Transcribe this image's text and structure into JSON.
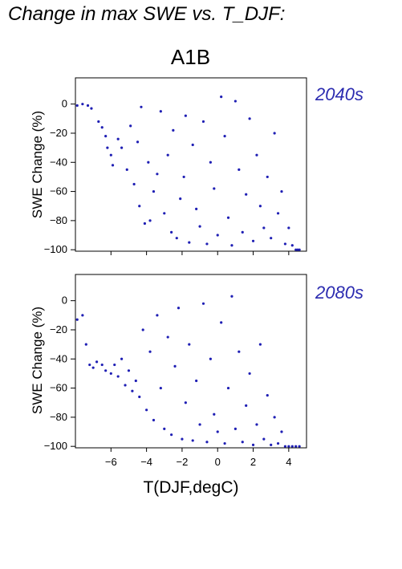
{
  "page": {
    "title": "Change in max SWE vs. T_DJF:",
    "scenario": "A1B"
  },
  "colors": {
    "points": "#1f1fb4",
    "period_label": "#2b2bb0"
  },
  "chart_data": [
    {
      "type": "scatter",
      "period_label": "2040s",
      "xlabel": "",
      "ylabel": "SWE Change (%)",
      "xlim": [
        -8,
        5
      ],
      "ylim": [
        -101,
        18
      ],
      "xticks": [
        -6,
        -4,
        -2,
        0,
        2,
        4
      ],
      "yticks": [
        0,
        -20,
        -40,
        -60,
        -80,
        -100
      ],
      "show_x_tick_labels": false,
      "grid": false,
      "series": [
        {
          "points": [
            [
              -7.9,
              -1
            ],
            [
              -7.6,
              0
            ],
            [
              -7.3,
              -1
            ],
            [
              -7.1,
              -3
            ],
            [
              -6.7,
              -12
            ],
            [
              -6.5,
              -16
            ],
            [
              -6.3,
              -22
            ],
            [
              -6.2,
              -30
            ],
            [
              -6.0,
              -35
            ],
            [
              -5.9,
              -42
            ],
            [
              -5.6,
              -24
            ],
            [
              -5.4,
              -30
            ],
            [
              -5.1,
              -45
            ],
            [
              -4.9,
              -15
            ],
            [
              -4.7,
              -55
            ],
            [
              -4.5,
              -26
            ],
            [
              -4.4,
              -70
            ],
            [
              -4.3,
              -2
            ],
            [
              -4.1,
              -82
            ],
            [
              -3.9,
              -40
            ],
            [
              -3.8,
              -80
            ],
            [
              -3.6,
              -60
            ],
            [
              -3.4,
              -48
            ],
            [
              -3.2,
              -5
            ],
            [
              -3.0,
              -75
            ],
            [
              -2.8,
              -35
            ],
            [
              -2.6,
              -88
            ],
            [
              -2.5,
              -18
            ],
            [
              -2.3,
              -92
            ],
            [
              -2.1,
              -65
            ],
            [
              -1.9,
              -50
            ],
            [
              -1.8,
              -8
            ],
            [
              -1.6,
              -95
            ],
            [
              -1.4,
              -28
            ],
            [
              -1.2,
              -72
            ],
            [
              -1.0,
              -84
            ],
            [
              -0.8,
              -12
            ],
            [
              -0.6,
              -96
            ],
            [
              -0.4,
              -40
            ],
            [
              -0.2,
              -58
            ],
            [
              0.0,
              -90
            ],
            [
              0.2,
              5
            ],
            [
              0.4,
              -22
            ],
            [
              0.6,
              -78
            ],
            [
              0.8,
              -97
            ],
            [
              1.0,
              2
            ],
            [
              1.2,
              -45
            ],
            [
              1.4,
              -88
            ],
            [
              1.6,
              -62
            ],
            [
              1.8,
              -10
            ],
            [
              2.0,
              -94
            ],
            [
              2.2,
              -35
            ],
            [
              2.4,
              -70
            ],
            [
              2.6,
              -85
            ],
            [
              2.8,
              -50
            ],
            [
              3.0,
              -92
            ],
            [
              3.2,
              -20
            ],
            [
              3.4,
              -75
            ],
            [
              3.6,
              -60
            ],
            [
              3.8,
              -96
            ],
            [
              4.0,
              -85
            ],
            [
              4.2,
              -97
            ],
            [
              4.4,
              -100
            ],
            [
              4.5,
              -100
            ],
            [
              4.6,
              -100
            ]
          ]
        }
      ]
    },
    {
      "type": "scatter",
      "period_label": "2080s",
      "xlabel": "T(DJF,degC)",
      "ylabel": "SWE Change (%)",
      "xlim": [
        -8,
        5
      ],
      "ylim": [
        -101,
        18
      ],
      "xticks": [
        -6,
        -4,
        -2,
        0,
        2,
        4
      ],
      "yticks": [
        0,
        -20,
        -40,
        -60,
        -80,
        -100
      ],
      "show_x_tick_labels": true,
      "grid": false,
      "series": [
        {
          "points": [
            [
              -7.9,
              -13
            ],
            [
              -7.6,
              -10
            ],
            [
              -7.4,
              -30
            ],
            [
              -7.2,
              -44
            ],
            [
              -7.0,
              -46
            ],
            [
              -6.8,
              -42
            ],
            [
              -6.5,
              -44
            ],
            [
              -6.3,
              -48
            ],
            [
              -6.0,
              -50
            ],
            [
              -5.8,
              -44
            ],
            [
              -5.6,
              -52
            ],
            [
              -5.4,
              -40
            ],
            [
              -5.2,
              -58
            ],
            [
              -5.0,
              -48
            ],
            [
              -4.8,
              -62
            ],
            [
              -4.6,
              -55
            ],
            [
              -4.4,
              -66
            ],
            [
              -4.2,
              -20
            ],
            [
              -4.0,
              -75
            ],
            [
              -3.8,
              -35
            ],
            [
              -3.6,
              -82
            ],
            [
              -3.4,
              -10
            ],
            [
              -3.2,
              -60
            ],
            [
              -3.0,
              -88
            ],
            [
              -2.8,
              -25
            ],
            [
              -2.6,
              -92
            ],
            [
              -2.4,
              -45
            ],
            [
              -2.2,
              -5
            ],
            [
              -2.0,
              -95
            ],
            [
              -1.8,
              -70
            ],
            [
              -1.6,
              -30
            ],
            [
              -1.4,
              -96
            ],
            [
              -1.2,
              -55
            ],
            [
              -1.0,
              -85
            ],
            [
              -0.8,
              -2
            ],
            [
              -0.6,
              -97
            ],
            [
              -0.4,
              -40
            ],
            [
              -0.2,
              -78
            ],
            [
              0.0,
              -90
            ],
            [
              0.2,
              -15
            ],
            [
              0.4,
              -98
            ],
            [
              0.6,
              -60
            ],
            [
              0.8,
              3
            ],
            [
              1.0,
              -88
            ],
            [
              1.2,
              -35
            ],
            [
              1.4,
              -97
            ],
            [
              1.6,
              -72
            ],
            [
              1.8,
              -50
            ],
            [
              2.0,
              -99
            ],
            [
              2.2,
              -85
            ],
            [
              2.4,
              -30
            ],
            [
              2.6,
              -95
            ],
            [
              2.8,
              -65
            ],
            [
              3.0,
              -99
            ],
            [
              3.2,
              -80
            ],
            [
              3.4,
              -98
            ],
            [
              3.6,
              -90
            ],
            [
              3.8,
              -100
            ],
            [
              4.0,
              -100
            ],
            [
              4.2,
              -100
            ],
            [
              4.4,
              -100
            ],
            [
              4.6,
              -100
            ]
          ]
        }
      ]
    }
  ]
}
